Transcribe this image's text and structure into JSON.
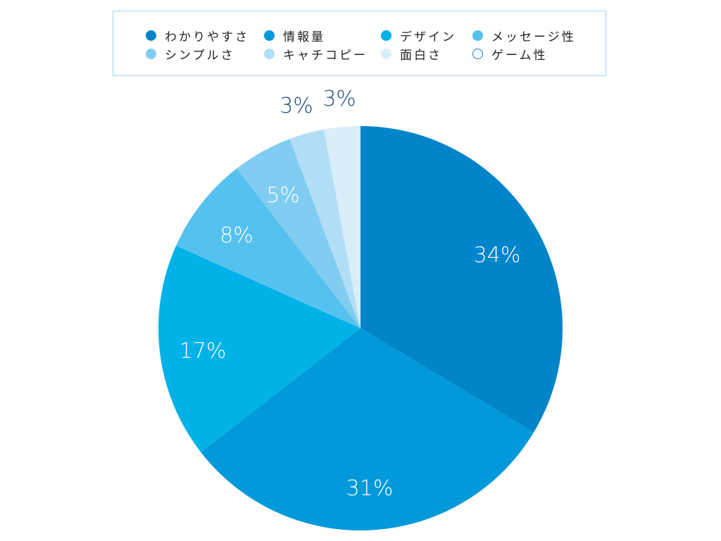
{
  "chart_data": {
    "type": "pie",
    "title": "",
    "legend_position": "top",
    "start_angle_deg": 0,
    "direction": "clockwise",
    "categories": [
      "わかりやすさ",
      "情報量",
      "デザイン",
      "メッセージ性",
      "シンプルさ",
      "キャチコピー",
      "面白さ",
      "ゲーム性"
    ],
    "values": [
      34,
      31,
      17,
      8,
      5,
      3,
      3,
      0
    ],
    "labels": [
      "34%",
      "31%",
      "17%",
      "8%",
      "5%",
      "3%",
      "3%",
      ""
    ],
    "colors": [
      "#0284cb",
      "#0199da",
      "#00b2e8",
      "#55c1ee",
      "#80cdf1",
      "#b1def6",
      "#d9edfb",
      "#f5fafe"
    ]
  },
  "legend": {
    "items": [
      {
        "label": "わかりやすさ",
        "color": "#0284cb"
      },
      {
        "label": "情報量",
        "color": "#0199da"
      },
      {
        "label": "デザイン",
        "color": "#00b2e8"
      },
      {
        "label": "メッセージ性",
        "color": "#55c1ee"
      },
      {
        "label": "シンプルさ",
        "color": "#80cdf1"
      },
      {
        "label": "キャチコピー",
        "color": "#b1def6"
      },
      {
        "label": "面白さ",
        "color": "#d9edfb"
      },
      {
        "label": "ゲーム性",
        "color": "#f5fafe",
        "outline": "#1a7fc4"
      }
    ]
  }
}
